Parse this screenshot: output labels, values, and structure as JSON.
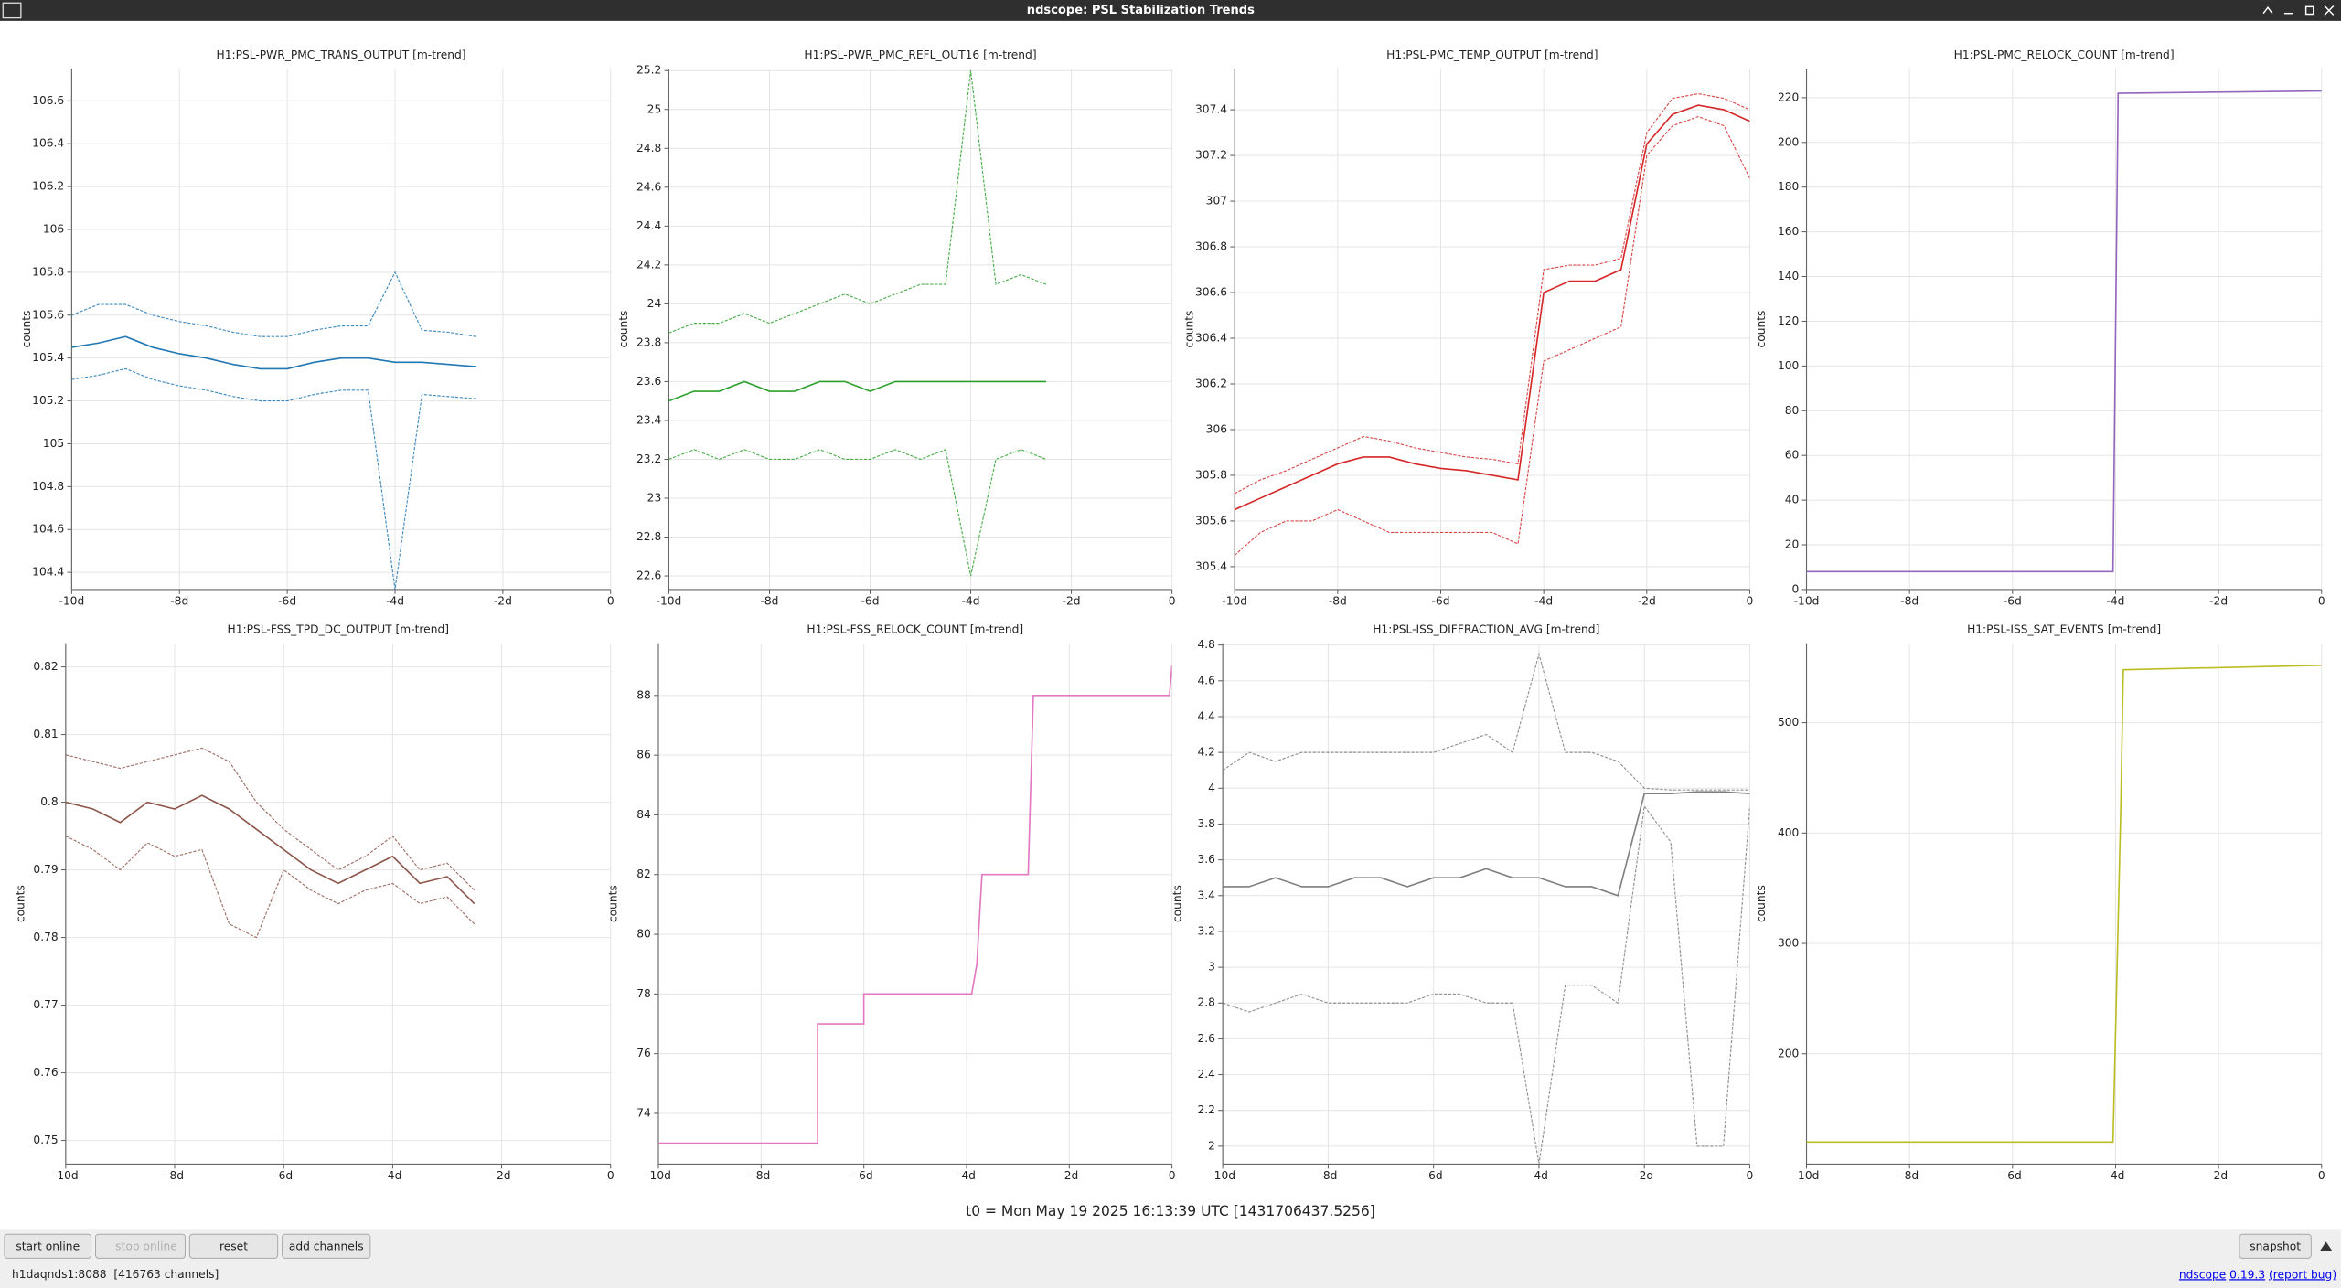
{
  "window": {
    "title": "ndscope: PSL Stabilization Trends"
  },
  "chart_data": [
    {
      "type": "line",
      "title": "H1:PSL-PWR_PMC_TRANS_OUTPUT [m-trend]",
      "ylabel": "counts",
      "grid": true,
      "xlim": [
        -10,
        0
      ],
      "xticks": [
        {
          "value": -10,
          "label": "-10d"
        },
        {
          "value": -8,
          "label": "-8d"
        },
        {
          "value": -6,
          "label": "-6d"
        },
        {
          "value": -4,
          "label": "-4d"
        },
        {
          "value": -2,
          "label": "-2d"
        },
        0
      ],
      "ylim": [
        104.32,
        106.75
      ],
      "yticks": [
        104.4,
        104.6,
        104.8,
        105,
        105.2,
        105.4,
        105.6,
        105.8,
        106,
        106.2,
        106.4,
        106.6
      ],
      "x": [
        -10,
        -9.5,
        -9,
        -8.5,
        -8,
        -7.5,
        -7,
        -6.5,
        -6,
        -5.5,
        -5,
        -4.5,
        -4,
        -3.5,
        -3,
        -2.5
      ],
      "series": [
        {
          "color": "#1f77b4",
          "values": [
            105.6,
            105.65,
            105.65,
            105.6,
            105.57,
            105.55,
            105.52,
            105.5,
            105.5,
            105.53,
            105.55,
            105.55,
            105.8,
            105.53,
            105.52,
            105.5
          ]
        },
        {
          "color": "#1f77b4",
          "values": [
            105.45,
            105.47,
            105.5,
            105.45,
            105.42,
            105.4,
            105.37,
            105.35,
            105.35,
            105.38,
            105.4,
            105.4,
            105.38,
            105.38,
            105.37,
            105.36
          ]
        },
        {
          "color": "#1f77b4",
          "values": [
            105.3,
            105.32,
            105.35,
            105.3,
            105.27,
            105.25,
            105.22,
            105.2,
            105.2,
            105.23,
            105.25,
            105.25,
            104.32,
            105.23,
            105.22,
            105.21
          ]
        }
      ]
    },
    {
      "type": "line",
      "title": "H1:PSL-PWR_PMC_REFL_OUT16 [m-trend]",
      "ylabel": "counts",
      "grid": true,
      "xlim": [
        -10,
        0
      ],
      "xticks": [
        {
          "value": -10,
          "label": "-10d"
        },
        {
          "value": -8,
          "label": "-8d"
        },
        {
          "value": -6,
          "label": "-6d"
        },
        {
          "value": -4,
          "label": "-4d"
        },
        {
          "value": -2,
          "label": "-2d"
        },
        0
      ],
      "ylim": [
        22.53,
        25.21
      ],
      "yticks": [
        22.6,
        22.8,
        23,
        23.2,
        23.4,
        23.6,
        23.8,
        24,
        24.2,
        24.4,
        24.6,
        24.8,
        25,
        25.2
      ],
      "x": [
        -10,
        -9.5,
        -9,
        -8.5,
        -8,
        -7.5,
        -7,
        -6.5,
        -6,
        -5.5,
        -5,
        -4.5,
        -4,
        -3.5,
        -3,
        -2.5
      ],
      "series": [
        {
          "color": "#2ca02c",
          "values": [
            23.85,
            23.9,
            23.9,
            23.95,
            23.9,
            23.95,
            24.0,
            24.05,
            24.0,
            24.05,
            24.1,
            24.1,
            25.2,
            24.1,
            24.15,
            24.1
          ]
        },
        {
          "color": "#2ca02c",
          "values": [
            23.5,
            23.55,
            23.55,
            23.6,
            23.55,
            23.55,
            23.6,
            23.6,
            23.55,
            23.6,
            23.6,
            23.6,
            23.6,
            23.6,
            23.6,
            23.6
          ]
        },
        {
          "color": "#2ca02c",
          "values": [
            23.2,
            23.25,
            23.2,
            23.25,
            23.2,
            23.2,
            23.25,
            23.2,
            23.2,
            23.25,
            23.2,
            23.25,
            22.6,
            23.2,
            23.25,
            23.2
          ]
        }
      ]
    },
    {
      "type": "line",
      "title": "H1:PSL-PMC_TEMP_OUTPUT [m-trend]",
      "ylabel": "counts",
      "grid": true,
      "xlim": [
        -10,
        0
      ],
      "xticks": [
        {
          "value": -10,
          "label": "-10d"
        },
        {
          "value": -8,
          "label": "-8d"
        },
        {
          "value": -6,
          "label": "-6d"
        },
        {
          "value": -4,
          "label": "-4d"
        },
        {
          "value": -2,
          "label": "-2d"
        },
        0
      ],
      "ylim": [
        305.3,
        307.58
      ],
      "yticks": [
        305.4,
        305.6,
        305.8,
        306,
        306.2,
        306.4,
        306.6,
        306.8,
        307,
        307.2,
        307.4
      ],
      "x": [
        -10,
        -9.5,
        -9,
        -8.5,
        -8,
        -7.5,
        -7,
        -6.5,
        -6,
        -5.5,
        -5,
        -4.5,
        -4,
        -3.5,
        -3,
        -2.5,
        -2,
        -1.5,
        -1,
        -0.5,
        0
      ],
      "series": [
        {
          "color": "#d62728",
          "values": [
            305.72,
            305.78,
            305.82,
            305.87,
            305.92,
            305.97,
            305.95,
            305.92,
            305.9,
            305.88,
            305.87,
            305.85,
            306.7,
            306.72,
            306.72,
            306.75,
            307.3,
            307.45,
            307.47,
            307.45,
            307.4
          ]
        },
        {
          "color": "#d62728",
          "values": [
            305.65,
            305.7,
            305.75,
            305.8,
            305.85,
            305.88,
            305.88,
            305.85,
            305.83,
            305.82,
            305.8,
            305.78,
            306.6,
            306.65,
            306.65,
            306.7,
            307.25,
            307.38,
            307.42,
            307.4,
            307.35
          ]
        },
        {
          "color": "#d62728",
          "values": [
            305.45,
            305.55,
            305.6,
            305.6,
            305.65,
            305.6,
            305.55,
            305.55,
            305.55,
            305.55,
            305.55,
            305.5,
            306.3,
            306.35,
            306.4,
            306.45,
            307.2,
            307.33,
            307.37,
            307.33,
            307.1
          ]
        }
      ]
    },
    {
      "type": "line",
      "title": "H1:PSL-PMC_RELOCK_COUNT [m-trend]",
      "ylabel": "counts",
      "grid": true,
      "xlim": [
        -10,
        0
      ],
      "xticks": [
        {
          "value": -10,
          "label": "-10d"
        },
        {
          "value": -8,
          "label": "-8d"
        },
        {
          "value": -6,
          "label": "-6d"
        },
        {
          "value": -4,
          "label": "-4d"
        },
        {
          "value": -2,
          "label": "-2d"
        },
        0
      ],
      "ylim": [
        0,
        233
      ],
      "yticks": [
        0,
        20,
        40,
        60,
        80,
        100,
        120,
        140,
        160,
        180,
        200,
        220
      ],
      "x": [
        -10,
        -4.05,
        -3.95,
        0
      ],
      "series": [
        {
          "color": "#9467bd",
          "values": [
            8,
            8,
            222,
            223
          ]
        }
      ]
    },
    {
      "type": "line",
      "title": "H1:PSL-FSS_TPD_DC_OUTPUT [m-trend]",
      "ylabel": "counts",
      "grid": true,
      "xlim": [
        -10,
        0
      ],
      "xticks": [
        {
          "value": -10,
          "label": "-10d"
        },
        {
          "value": -8,
          "label": "-8d"
        },
        {
          "value": -6,
          "label": "-6d"
        },
        {
          "value": -4,
          "label": "-4d"
        },
        {
          "value": -2,
          "label": "-2d"
        },
        0
      ],
      "ylim": [
        0.7465,
        0.8235
      ],
      "yticks": [
        0.75,
        0.76,
        0.77,
        0.78,
        0.79,
        0.8,
        0.81,
        0.82
      ],
      "x": [
        -10,
        -9.5,
        -9,
        -8.5,
        -8,
        -7.5,
        -7,
        -6.5,
        -6,
        -5.5,
        -5,
        -4.5,
        -4,
        -3.5,
        -3,
        -2.5
      ],
      "series": [
        {
          "color": "#8c564b",
          "values": [
            0.807,
            0.806,
            0.805,
            0.806,
            0.807,
            0.808,
            0.806,
            0.8,
            0.796,
            0.793,
            0.79,
            0.792,
            0.795,
            0.79,
            0.791,
            0.787
          ]
        },
        {
          "color": "#8c564b",
          "values": [
            0.8,
            0.799,
            0.797,
            0.8,
            0.799,
            0.801,
            0.799,
            0.796,
            0.793,
            0.79,
            0.788,
            0.79,
            0.792,
            0.788,
            0.789,
            0.785
          ]
        },
        {
          "color": "#8c564b",
          "values": [
            0.795,
            0.793,
            0.79,
            0.794,
            0.792,
            0.793,
            0.782,
            0.78,
            0.79,
            0.787,
            0.785,
            0.787,
            0.788,
            0.785,
            0.786,
            0.782
          ]
        }
      ]
    },
    {
      "type": "line",
      "title": "H1:PSL-FSS_RELOCK_COUNT [m-trend]",
      "ylabel": "counts",
      "grid": true,
      "xlim": [
        -10,
        0
      ],
      "xticks": [
        {
          "value": -10,
          "label": "-10d"
        },
        {
          "value": -8,
          "label": "-8d"
        },
        {
          "value": -6,
          "label": "-6d"
        },
        {
          "value": -4,
          "label": "-4d"
        },
        {
          "value": -2,
          "label": "-2d"
        },
        0
      ],
      "ylim": [
        72.3,
        89.75
      ],
      "yticks": [
        74,
        76,
        78,
        80,
        82,
        84,
        86,
        88
      ],
      "x": [
        -10,
        -6.9,
        -6.9,
        -6,
        -6,
        -3.9,
        -3.8,
        -3.7,
        -2.8,
        -2.7,
        -0.05,
        0
      ],
      "series": [
        {
          "color": "#e377c2",
          "values": [
            73,
            73,
            77,
            77,
            78,
            78,
            79,
            82,
            82,
            88,
            88,
            89
          ]
        }
      ]
    },
    {
      "type": "line",
      "title": "H1:PSL-ISS_DIFFRACTION_AVG [m-trend]",
      "ylabel": "counts",
      "grid": true,
      "xlim": [
        -10,
        0
      ],
      "xticks": [
        {
          "value": -10,
          "label": "-10d"
        },
        {
          "value": -8,
          "label": "-8d"
        },
        {
          "value": -6,
          "label": "-6d"
        },
        {
          "value": -4,
          "label": "-4d"
        },
        {
          "value": -2,
          "label": "-2d"
        },
        0
      ],
      "ylim": [
        1.9,
        4.81
      ],
      "yticks": [
        2,
        2.2,
        2.4,
        2.6,
        2.8,
        3,
        3.2,
        3.4,
        3.6,
        3.8,
        4,
        4.2,
        4.4,
        4.6,
        4.8
      ],
      "x": [
        -10,
        -9.5,
        -9,
        -8.5,
        -8,
        -7.5,
        -7,
        -6.5,
        -6,
        -5.5,
        -5,
        -4.5,
        -4,
        -3.5,
        -3,
        -2.5,
        -2,
        -1.5,
        -1,
        -0.5,
        0
      ],
      "series": [
        {
          "color": "#7f7f7f",
          "values": [
            4.1,
            4.2,
            4.15,
            4.2,
            4.2,
            4.2,
            4.2,
            4.2,
            4.2,
            4.25,
            4.3,
            4.2,
            4.75,
            4.2,
            4.2,
            4.15,
            4.0,
            3.99,
            3.99,
            3.99,
            3.99
          ]
        },
        {
          "color": "#7f7f7f",
          "values": [
            3.45,
            3.45,
            3.5,
            3.45,
            3.45,
            3.5,
            3.5,
            3.45,
            3.5,
            3.5,
            3.55,
            3.5,
            3.5,
            3.45,
            3.45,
            3.4,
            3.97,
            3.97,
            3.98,
            3.98,
            3.97
          ]
        },
        {
          "color": "#7f7f7f",
          "values": [
            2.8,
            2.75,
            2.8,
            2.85,
            2.8,
            2.8,
            2.8,
            2.8,
            2.85,
            2.85,
            2.8,
            2.8,
            1.9,
            2.9,
            2.9,
            2.8,
            3.9,
            3.7,
            2.0,
            2.0,
            3.9
          ]
        }
      ]
    },
    {
      "type": "line",
      "title": "H1:PSL-ISS_SAT_EVENTS [m-trend]",
      "ylabel": "counts",
      "grid": true,
      "xlim": [
        -10,
        0
      ],
      "xticks": [
        {
          "value": -10,
          "label": "-10d"
        },
        {
          "value": -8,
          "label": "-8d"
        },
        {
          "value": -6,
          "label": "-6d"
        },
        {
          "value": -4,
          "label": "-4d"
        },
        {
          "value": -2,
          "label": "-2d"
        },
        0
      ],
      "ylim": [
        100,
        572
      ],
      "yticks": [
        200,
        300,
        400,
        500
      ],
      "x": [
        -10,
        -4.05,
        -3.9,
        -3.85,
        0
      ],
      "series": [
        {
          "color": "#bcbd22",
          "values": [
            120,
            120,
            420,
            548,
            552
          ]
        }
      ]
    }
  ],
  "t0": "t0 = Mon May 19 2025 16:13:39 UTC [1431706437.5256]",
  "buttons": [
    "start online",
    "stop online",
    "reset",
    "add channels"
  ],
  "snapshot": "snapshot",
  "status": {
    "server": "h1daqnds1:8088  [416763 channels]",
    "app": "ndscope",
    "version": "0.19.3",
    "report": "(report bug)"
  }
}
